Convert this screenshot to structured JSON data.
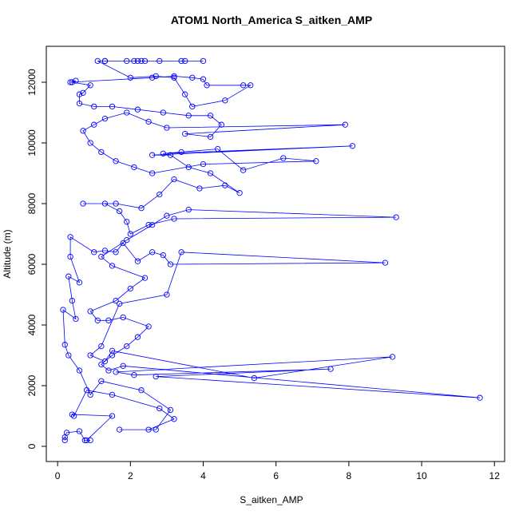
{
  "chart_data": {
    "type": "line",
    "title": "ATOM1 North_America S_aitken_AMP",
    "x_label": "S_aitken_AMP",
    "y_label": "Altitude (m)",
    "xlim": [
      -0.31,
      12.28
    ],
    "ylim": [
      -500,
      13184
    ],
    "xticks": [
      0,
      2,
      4,
      6,
      8,
      10,
      12
    ],
    "yticks": [
      0,
      2000,
      4000,
      6000,
      8000,
      10000,
      12000
    ],
    "x": [
      0.2,
      0.2,
      0.25,
      0.6,
      0.75,
      0.9,
      0.8,
      1.5,
      0.4,
      0.45,
      0.8,
      1.5,
      2.8,
      3.2,
      2.5,
      1.7,
      2.7,
      3.1,
      2.3,
      1.2,
      0.9,
      0.6,
      0.3,
      0.2,
      0.15,
      0.5,
      0.4,
      0.3,
      0.6,
      0.35,
      0.35,
      1.0,
      1.3,
      1.6,
      1.8,
      2.2,
      2.6,
      2.9,
      3.1,
      9.0,
      3.4,
      3.0,
      1.7,
      1.2,
      0.9,
      1.3,
      1.5,
      5.4,
      9.2,
      1.6,
      2.1,
      7.5,
      2.7,
      11.6,
      1.8,
      1.4,
      1.2,
      1.5,
      1.9,
      2.2,
      2.5,
      1.8,
      1.4,
      1.1,
      0.9,
      1.6,
      2.0,
      2.4,
      1.5,
      1.2,
      1.9,
      2.6,
      3.0,
      3.6,
      9.3,
      3.2,
      2.5,
      2.0,
      1.9,
      1.7,
      1.3,
      0.7,
      1.6,
      2.3,
      2.8,
      3.2,
      3.9,
      4.6,
      5.0,
      4.2,
      3.6,
      3.1,
      2.6,
      8.1,
      2.9,
      3.4,
      4.4,
      5.1,
      6.2,
      7.1,
      4.0,
      2.6,
      2.1,
      1.6,
      1.2,
      0.9,
      0.7,
      1.0,
      1.3,
      1.9,
      2.5,
      3.0,
      7.9,
      3.5,
      4.2,
      4.5,
      4.2,
      3.6,
      2.9,
      2.2,
      1.5,
      1.0,
      0.6,
      0.6,
      0.7,
      0.9,
      0.4,
      0.5,
      0.35,
      2.6,
      3.2,
      3.7,
      4.0,
      4.1,
      5.1,
      5.3,
      4.6,
      3.7,
      3.5,
      3.2,
      2.7,
      2.0,
      1.1,
      1.3,
      1.9,
      2.2,
      2.4,
      2.8,
      3.4,
      4.0,
      3.5,
      2.3,
      2.1,
      1.3
    ],
    "series": [
      {
        "color": "#0000ff",
        "values": [
          200,
          300,
          450,
          500,
          200,
          200,
          200,
          1000,
          1050,
          1000,
          1850,
          1700,
          1250,
          900,
          550,
          550,
          550,
          1200,
          1850,
          2150,
          1700,
          2500,
          3000,
          3350,
          4500,
          4200,
          4800,
          5600,
          5400,
          6250,
          6900,
          6400,
          6450,
          6400,
          6700,
          6100,
          6400,
          6300,
          6000,
          6050,
          6400,
          5000,
          4700,
          3300,
          3000,
          2800,
          3150,
          2250,
          2950,
          2450,
          2350,
          2550,
          2300,
          1600,
          2650,
          2500,
          2700,
          3000,
          3300,
          3600,
          3950,
          4250,
          4150,
          4150,
          4450,
          4800,
          5200,
          5550,
          5950,
          6250,
          6800,
          7300,
          7600,
          7800,
          7550,
          7500,
          7300,
          7000,
          7400,
          7750,
          8000,
          8000,
          8000,
          7850,
          8300,
          8800,
          8500,
          8600,
          8350,
          9000,
          9200,
          9600,
          9600,
          9900,
          9650,
          9700,
          9800,
          9100,
          9500,
          9400,
          9300,
          9000,
          9200,
          9400,
          9700,
          10000,
          10400,
          10600,
          10800,
          11000,
          10700,
          10500,
          10600,
          10300,
          10200,
          10600,
          10900,
          10900,
          11000,
          11100,
          11200,
          11200,
          11300,
          11600,
          11650,
          11900,
          12000,
          12050,
          12000,
          12150,
          12200,
          12150,
          12100,
          11900,
          11900,
          11900,
          11400,
          11200,
          11600,
          12150,
          12200,
          12150,
          12700,
          12700,
          12700,
          12700,
          12700,
          12700,
          12700,
          12700,
          12700,
          12700,
          12700,
          12700
        ]
      }
    ]
  }
}
